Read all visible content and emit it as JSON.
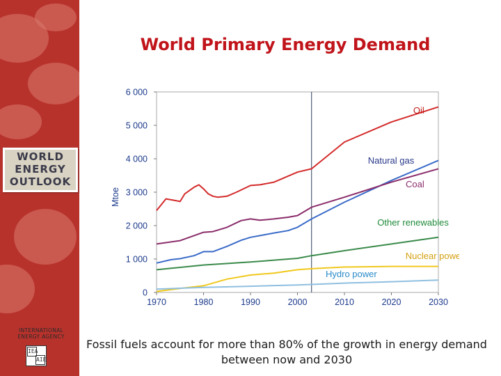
{
  "title": "World Primary Energy Demand",
  "caption": "Fossil fuels account for more than 80% of the growth in energy demand between now and 2030",
  "sidebar": {
    "logo_lines": [
      "WORLD",
      "ENERGY",
      "OUTLOOK"
    ],
    "agency_name": "INTERNATIONAL ENERGY AGENCY",
    "agency_logo_glyphs": [
      "IEA",
      "AIE"
    ]
  },
  "colors": {
    "sidebar": "#b8322c",
    "title": "#c0141a",
    "axis_text": "#1c3a8c"
  },
  "chart_data": {
    "type": "line",
    "title": "World Primary Energy Demand",
    "ylabel": "Mtoe",
    "xlabel": "",
    "xlim": [
      1970,
      2030
    ],
    "ylim": [
      0,
      6000
    ],
    "xticks": [
      1970,
      1980,
      1990,
      2000,
      2010,
      2020,
      2030
    ],
    "xtick_labels": [
      "1970",
      "1980",
      "1990",
      "2000",
      "2010",
      "2020",
      "2030"
    ],
    "yticks": [
      0,
      1000,
      2000,
      3000,
      4000,
      5000,
      6000
    ],
    "ytick_labels": [
      "0",
      "1 000",
      "2 000",
      "3 000",
      "4 000",
      "5 000",
      "6 000"
    ],
    "divider_x": 2003,
    "series": [
      {
        "name": "Oil",
        "color": "#d42a2a",
        "x": [
          1970,
          1972,
          1974,
          1975,
          1976,
          1977,
          1978,
          1979,
          1980,
          1981,
          1982,
          1983,
          1985,
          1987,
          1990,
          1992,
          1995,
          1997,
          2000,
          2003,
          2010,
          2020,
          2030
        ],
        "values": [
          2450,
          2800,
          2750,
          2720,
          2950,
          3050,
          3150,
          3220,
          3100,
          2950,
          2880,
          2850,
          2880,
          3000,
          3200,
          3220,
          3300,
          3420,
          3600,
          3700,
          4500,
          5100,
          5550
        ]
      },
      {
        "name": "Natural gas",
        "color": "#3a6bc8",
        "x": [
          1970,
          1973,
          1975,
          1978,
          1980,
          1982,
          1985,
          1988,
          1990,
          1992,
          1995,
          1998,
          2000,
          2003,
          2010,
          2020,
          2030
        ],
        "values": [
          880,
          980,
          1010,
          1100,
          1220,
          1220,
          1380,
          1560,
          1650,
          1700,
          1780,
          1850,
          1950,
          2200,
          2700,
          3350,
          3950
        ]
      },
      {
        "name": "Coal",
        "color": "#8a2c6a",
        "x": [
          1970,
          1975,
          1980,
          1982,
          1985,
          1988,
          1990,
          1992,
          1995,
          1998,
          2000,
          2003,
          2010,
          2020,
          2030
        ],
        "values": [
          1450,
          1550,
          1800,
          1820,
          1950,
          2150,
          2200,
          2160,
          2200,
          2250,
          2300,
          2550,
          2850,
          3300,
          3700
        ]
      },
      {
        "name": "Other renewables",
        "color": "#3a8a4a",
        "x": [
          1970,
          1980,
          1990,
          2000,
          2003,
          2010,
          2020,
          2030
        ],
        "values": [
          680,
          820,
          910,
          1020,
          1100,
          1250,
          1450,
          1650
        ]
      },
      {
        "name": "Nuclear power",
        "color": "#f0c81c",
        "x": [
          1970,
          1975,
          1980,
          1985,
          1990,
          1995,
          2000,
          2003,
          2010,
          2020,
          2030
        ],
        "values": [
          30,
          120,
          200,
          400,
          520,
          580,
          680,
          710,
          760,
          780,
          780
        ]
      },
      {
        "name": "Hydro power",
        "color": "#8fbfe0",
        "x": [
          1970,
          1980,
          1990,
          2000,
          2003,
          2010,
          2020,
          2030
        ],
        "values": [
          100,
          150,
          185,
          225,
          240,
          280,
          320,
          370
        ]
      }
    ],
    "labels": [
      {
        "text": "Oil",
        "color": "#c01a1a",
        "x": 2027,
        "y": 5350
      },
      {
        "text": "Natural gas",
        "color": "#2a3a8a",
        "x": 2015,
        "y": 3850
      },
      {
        "text": "Coal",
        "color": "#8a2c6a",
        "x": 2027,
        "y": 3150
      },
      {
        "text": "Other renewables",
        "color": "#1f8a3a",
        "x": 2017,
        "y": 2000
      },
      {
        "text": "Nuclear power",
        "color": "#d4a010",
        "x": 2023,
        "y": 1000
      },
      {
        "text": "Hydro power",
        "color": "#2a8ac8",
        "x": 2006,
        "y": 460
      }
    ]
  }
}
